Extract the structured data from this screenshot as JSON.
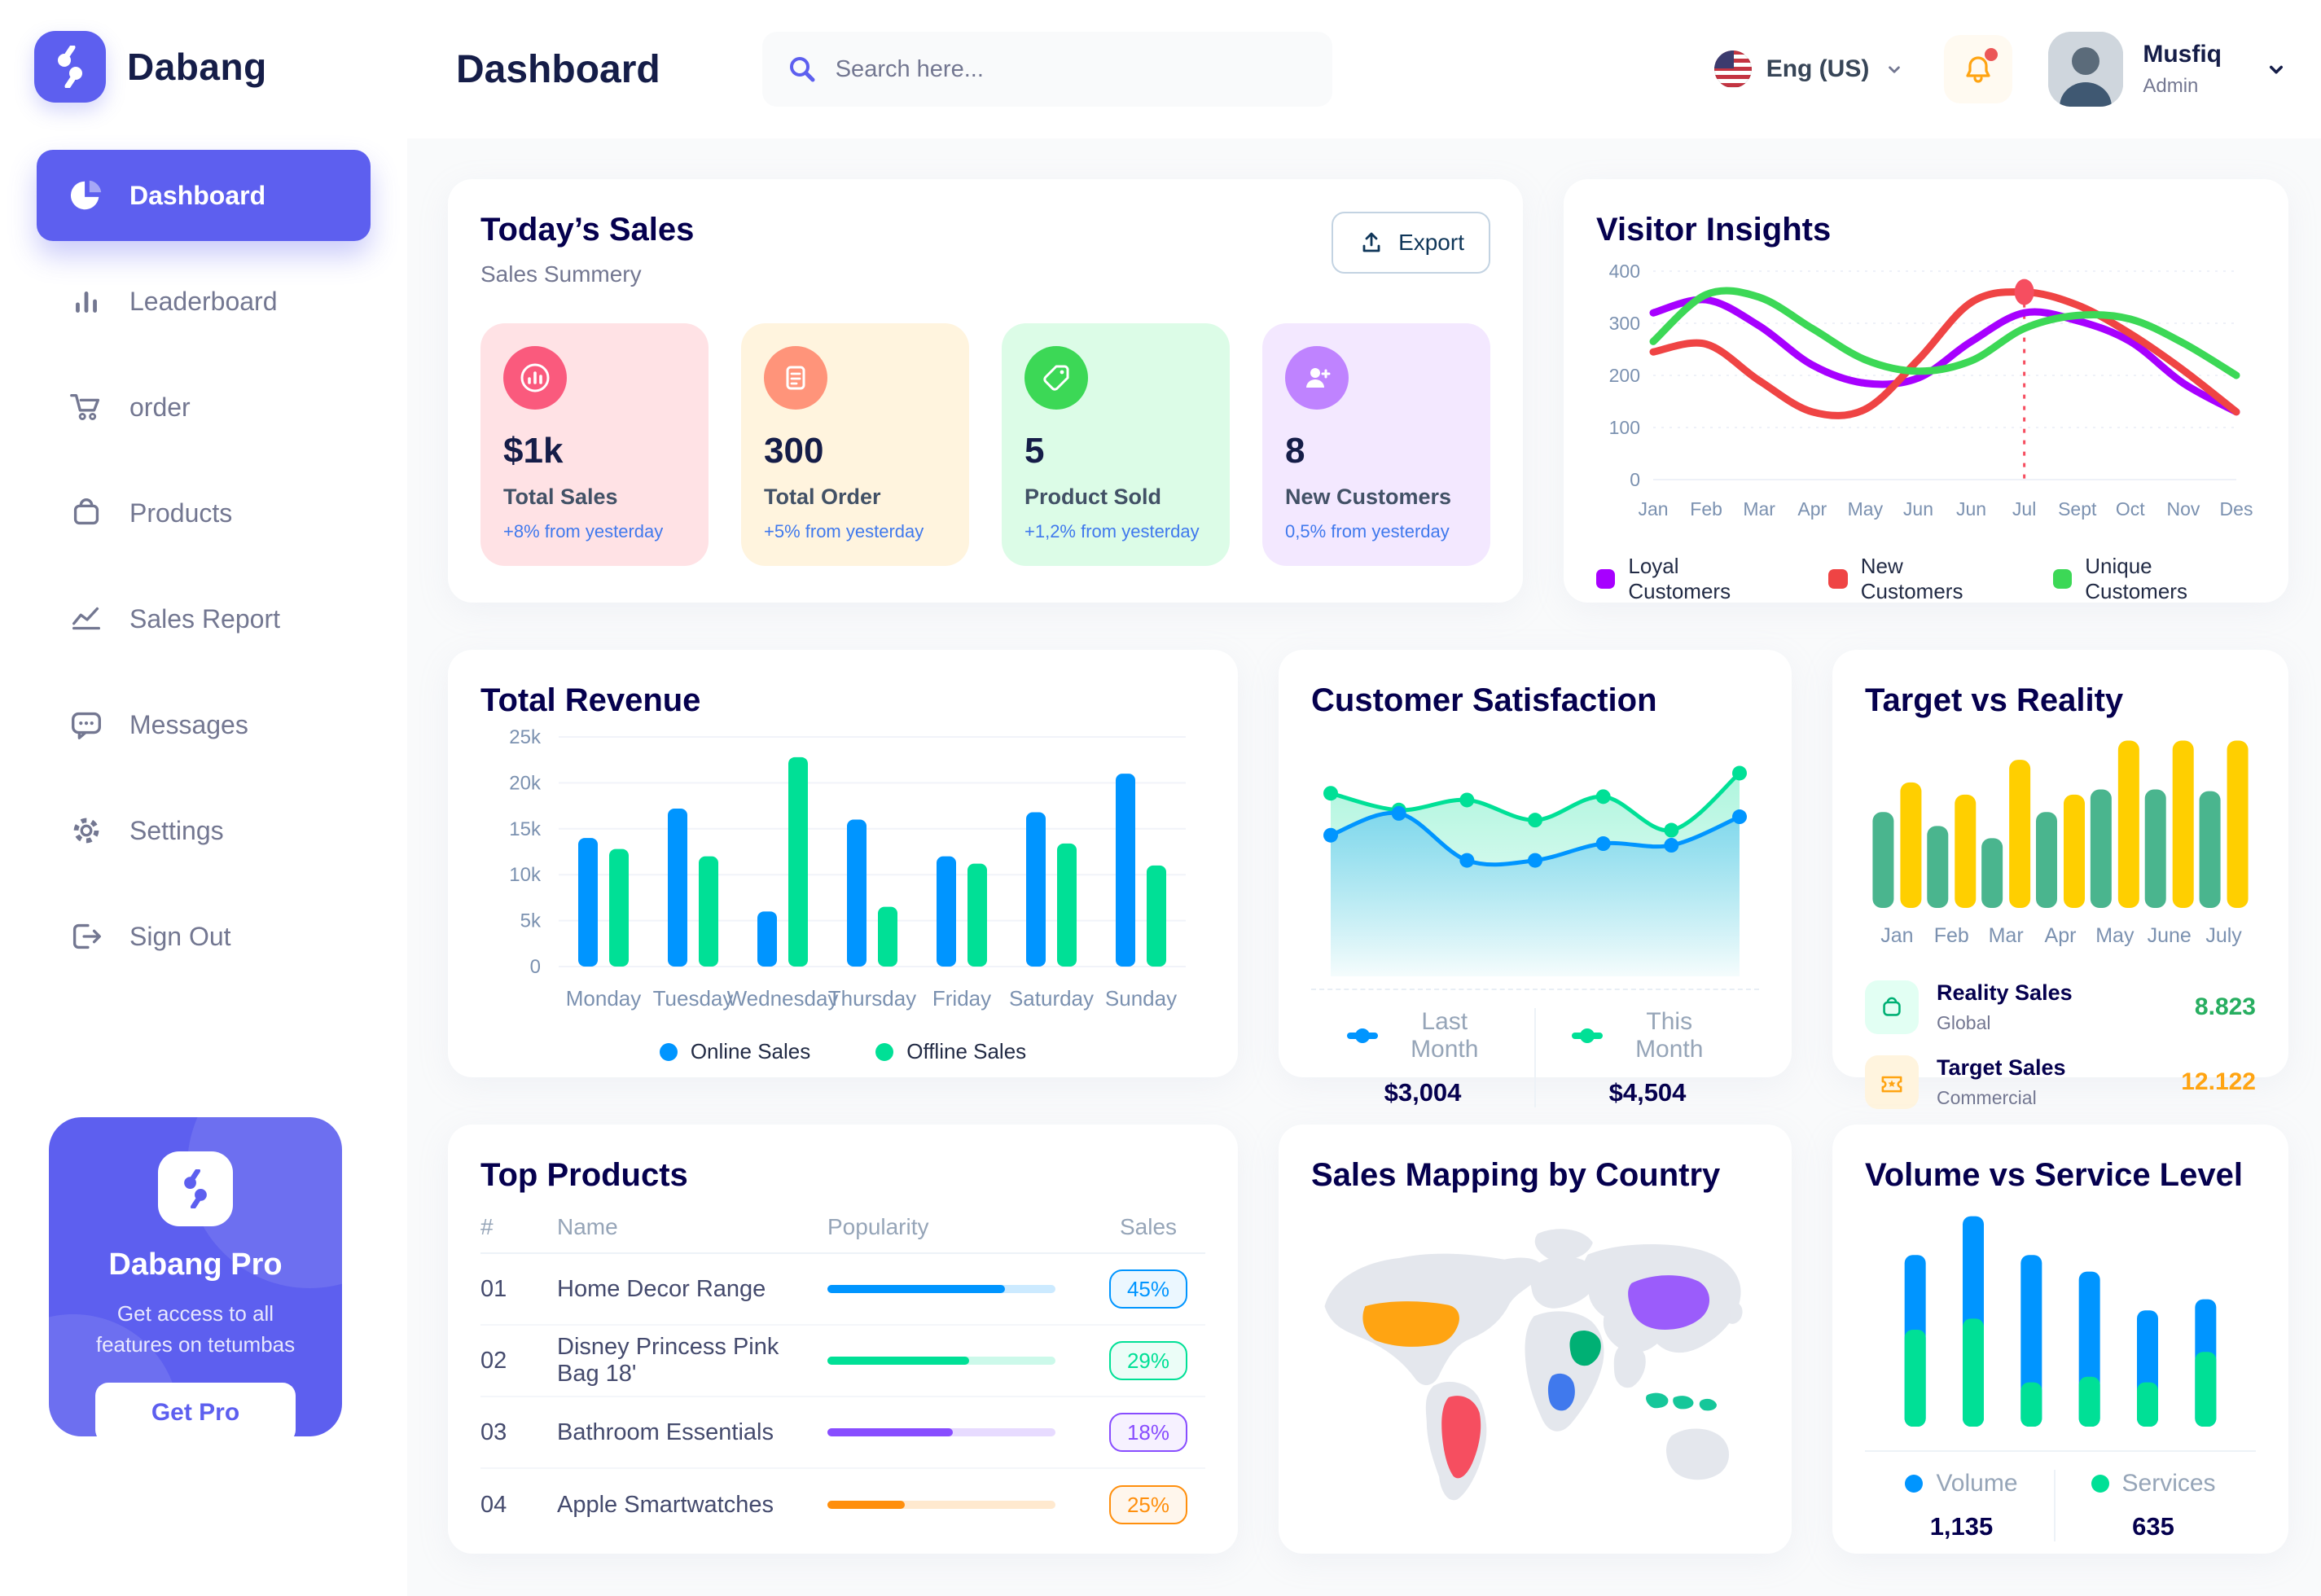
{
  "header": {
    "title": "Dashboard",
    "search_placeholder": "Search here...",
    "language": "Eng (US)",
    "user": {
      "name": "Musfiq",
      "role": "Admin"
    }
  },
  "sidebar": {
    "brand": "Dabang",
    "items": [
      {
        "label": "Dashboard"
      },
      {
        "label": "Leaderboard"
      },
      {
        "label": "order"
      },
      {
        "label": "Products"
      },
      {
        "label": "Sales Report"
      },
      {
        "label": "Messages"
      },
      {
        "label": "Settings"
      },
      {
        "label": "Sign Out"
      }
    ],
    "pro": {
      "title": "Dabang Pro",
      "description": "Get access to all features on tetumbas",
      "button": "Get Pro"
    }
  },
  "todays_sales": {
    "title": "Today’s Sales",
    "subtitle": "Sales Summery",
    "export_label": "Export",
    "cards": [
      {
        "value": "$1k",
        "label": "Total Sales",
        "delta": "+8% from yesterday",
        "bg": "#FFE2E5",
        "icon_bg": "#FA5A7D"
      },
      {
        "value": "300",
        "label": "Total Order",
        "delta": "+5% from yesterday",
        "bg": "#FFF4DE",
        "icon_bg": "#FF947A"
      },
      {
        "value": "5",
        "label": "Product Sold",
        "delta": "+1,2% from yesterday",
        "bg": "#DCFCE7",
        "icon_bg": "#3CD856"
      },
      {
        "value": "8",
        "label": "New Customers",
        "delta": "0,5% from yesterday",
        "bg": "#F3E8FF",
        "icon_bg": "#BF83FF"
      }
    ]
  },
  "chart_data": [
    {
      "id": "visitor_insights",
      "type": "line",
      "title": "Visitor Insights",
      "x_labels": [
        "Jan",
        "Feb",
        "Mar",
        "Apr",
        "May",
        "Jun",
        "Jun",
        "Jul",
        "Sept",
        "Oct",
        "Nov",
        "Des"
      ],
      "y_ticks": [
        0,
        100,
        200,
        300,
        400
      ],
      "y_max": 400,
      "grid": true,
      "legend_position": "bottom",
      "series": [
        {
          "name": "Loyal Customers",
          "color": "#A700FF",
          "values": [
            320,
            345,
            295,
            220,
            185,
            195,
            265,
            320,
            305,
            265,
            185,
            130
          ]
        },
        {
          "name": "New Customers",
          "color": "#EF4444",
          "values": [
            245,
            260,
            190,
            130,
            135,
            230,
            340,
            360,
            335,
            280,
            210,
            130
          ]
        },
        {
          "name": "Unique Customers",
          "color": "#3CD856",
          "values": [
            265,
            355,
            350,
            290,
            230,
            208,
            228,
            290,
            315,
            308,
            262,
            200
          ]
        }
      ],
      "highlight": {
        "series": "New Customers",
        "x_index": 7,
        "value": 360
      }
    },
    {
      "id": "total_revenue",
      "type": "bar",
      "title": "Total Revenue",
      "categories": [
        "Monday",
        "Tuesday",
        "Wednesday",
        "Thursday",
        "Friday",
        "Saturday",
        "Sunday"
      ],
      "y_ticks": [
        "0",
        "5k",
        "10k",
        "15k",
        "20k",
        "25k"
      ],
      "y_max": 25000,
      "grid": true,
      "legend_position": "bottom",
      "series": [
        {
          "name": "Online Sales",
          "color": "#0095FF",
          "values": [
            14000,
            17200,
            6000,
            16000,
            12000,
            16800,
            21000
          ]
        },
        {
          "name": "Offline Sales",
          "color": "#00E096",
          "values": [
            12800,
            12000,
            22800,
            6500,
            11200,
            13400,
            11000
          ]
        }
      ]
    },
    {
      "id": "customer_satisfaction",
      "type": "area",
      "title": "Customer Satisfaction",
      "x_count": 7,
      "y_range": [
        0,
        100
      ],
      "series": [
        {
          "name": "Last Month",
          "color": "#0095FF",
          "total": "$3,004",
          "values": [
            55,
            68,
            40,
            40,
            50,
            49,
            66
          ]
        },
        {
          "name": "This Month",
          "color": "#00E096",
          "total": "$4,504",
          "values": [
            80,
            70,
            76,
            64,
            78,
            58,
            92
          ]
        }
      ]
    },
    {
      "id": "target_vs_reality",
      "type": "bar",
      "title": "Target vs Reality",
      "categories": [
        "Jan",
        "Feb",
        "Mar",
        "Apr",
        "May",
        "June",
        "July"
      ],
      "y_max": 10,
      "series": [
        {
          "name": "Reality Sales",
          "color": "#4AB58E",
          "values": [
            5.5,
            4.7,
            4.0,
            5.5,
            6.8,
            6.8,
            6.7
          ]
        },
        {
          "name": "Target Sales",
          "color": "#FFCF00",
          "values": [
            7.2,
            6.5,
            8.5,
            6.5,
            9.6,
            9.6,
            9.6
          ]
        }
      ],
      "legend": [
        {
          "name": "Reality Sales",
          "scope": "Global",
          "value": "8.823",
          "value_color": "#27AE60",
          "icon_bg": "#E2FFF3",
          "icon_color": "#00B074"
        },
        {
          "name": "Target Sales",
          "scope": "Commercial",
          "value": "12.122",
          "value_color": "#FFA412",
          "icon_bg": "#FFF4DE",
          "icon_color": "#FFA412"
        }
      ]
    },
    {
      "id": "volume_vs_service",
      "type": "stacked_bar",
      "title": "Volume vs Service Level",
      "x_count": 6,
      "series": [
        {
          "name": "Volume",
          "color": "#0095FF",
          "total": "1,135",
          "values": [
            27,
            37,
            46,
            38,
            26,
            19
          ]
        },
        {
          "name": "Services",
          "color": "#00E096",
          "total": "635",
          "values": [
            35,
            39,
            16,
            18,
            16,
            27
          ]
        }
      ]
    }
  ],
  "top_products": {
    "title": "Top Products",
    "headers": [
      "#",
      "Name",
      "Popularity",
      "Sales"
    ],
    "rows": [
      {
        "rank": "01",
        "name": "Home Decor Range",
        "popularity": 78,
        "sales": "45%",
        "color": "#0095FF"
      },
      {
        "rank": "02",
        "name": "Disney Princess Pink Bag 18'",
        "popularity": 62,
        "sales": "29%",
        "color": "#00E096"
      },
      {
        "rank": "03",
        "name": "Bathroom Essentials",
        "popularity": 55,
        "sales": "18%",
        "color": "#884DFF"
      },
      {
        "rank": "04",
        "name": "Apple Smartwatches",
        "popularity": 34,
        "sales": "25%",
        "color": "#FF8F0D"
      }
    ]
  },
  "sales_map": {
    "title": "Sales Mapping by Country",
    "countries": [
      {
        "key": "usa",
        "name": "United States",
        "color": "#FFA412"
      },
      {
        "key": "brazil",
        "name": "Brazil",
        "color": "#F64E60"
      },
      {
        "key": "dr-congo",
        "name": "DR Congo",
        "color": "#4079ED"
      },
      {
        "key": "saudi-arabia",
        "name": "Saudi Arabia",
        "color": "#00B074"
      },
      {
        "key": "china",
        "name": "China",
        "color": "#9B5CFB"
      },
      {
        "key": "indonesia",
        "name": "Indonesia",
        "color": "#16C79A"
      }
    ]
  }
}
